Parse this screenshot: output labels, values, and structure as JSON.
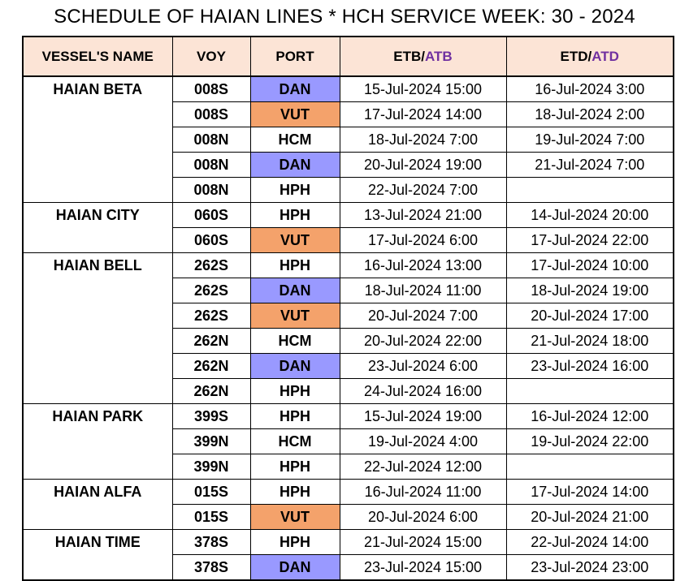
{
  "title": "SCHEDULE OF HAIAN LINES * HCH SERVICE WEEK: 30 - 2024",
  "colors": {
    "header_bg": "#fce4d6",
    "dan": "#9999ff",
    "vut": "#f4a26b",
    "accent_text": "#7030a0"
  },
  "columns": {
    "vessel": "VESSEL'S NAME",
    "voy": "VOY",
    "port": "PORT",
    "etb": "ETB/",
    "atb": "ATB",
    "etd": "ETD/",
    "atd": "ATD"
  },
  "rows": [
    {
      "vessel": "HAIAN BETA",
      "voy": "008S",
      "port": "DAN",
      "etb": "15-Jul-2024 15:00",
      "etd": "16-Jul-2024 3:00"
    },
    {
      "vessel": "",
      "voy": "008S",
      "port": "VUT",
      "etb": "17-Jul-2024 14:00",
      "etd": "18-Jul-2024 2:00"
    },
    {
      "vessel": "",
      "voy": "008N",
      "port": "HCM",
      "etb": "18-Jul-2024 7:00",
      "etd": "19-Jul-2024 7:00"
    },
    {
      "vessel": "",
      "voy": "008N",
      "port": "DAN",
      "etb": "20-Jul-2024 19:00",
      "etd": "21-Jul-2024 7:00"
    },
    {
      "vessel": "",
      "voy": "008N",
      "port": "HPH",
      "etb": "22-Jul-2024 7:00",
      "etd": ""
    },
    {
      "vessel": "HAIAN CITY",
      "voy": "060S",
      "port": "HPH",
      "etb": "13-Jul-2024 21:00",
      "etd": "14-Jul-2024 20:00"
    },
    {
      "vessel": "",
      "voy": "060S",
      "port": "VUT",
      "etb": "17-Jul-2024 6:00",
      "etd": "17-Jul-2024 22:00"
    },
    {
      "vessel": "HAIAN BELL",
      "voy": "262S",
      "port": "HPH",
      "etb": "16-Jul-2024 13:00",
      "etd": "17-Jul-2024 10:00"
    },
    {
      "vessel": "",
      "voy": "262S",
      "port": "DAN",
      "etb": "18-Jul-2024 11:00",
      "etd": "18-Jul-2024 19:00"
    },
    {
      "vessel": "",
      "voy": "262S",
      "port": "VUT",
      "etb": "20-Jul-2024 7:00",
      "etd": "20-Jul-2024 17:00"
    },
    {
      "vessel": "",
      "voy": "262N",
      "port": "HCM",
      "etb": "20-Jul-2024 22:00",
      "etd": "21-Jul-2024 18:00"
    },
    {
      "vessel": "",
      "voy": "262N",
      "port": "DAN",
      "etb": "23-Jul-2024 6:00",
      "etd": "23-Jul-2024 16:00"
    },
    {
      "vessel": "",
      "voy": "262N",
      "port": "HPH",
      "etb": "24-Jul-2024 16:00",
      "etd": ""
    },
    {
      "vessel": "HAIAN PARK",
      "voy": "399S",
      "port": "HPH",
      "etb": "15-Jul-2024 19:00",
      "etd": "16-Jul-2024 12:00"
    },
    {
      "vessel": "",
      "voy": "399N",
      "port": "HCM",
      "etb": "19-Jul-2024 4:00",
      "etd": "19-Jul-2024 22:00"
    },
    {
      "vessel": "",
      "voy": "399N",
      "port": "HPH",
      "etb": "22-Jul-2024 12:00",
      "etd": ""
    },
    {
      "vessel": "HAIAN ALFA",
      "voy": "015S",
      "port": "HPH",
      "etb": "16-Jul-2024 11:00",
      "etd": "17-Jul-2024 14:00"
    },
    {
      "vessel": "",
      "voy": "015S",
      "port": "VUT",
      "etb": "20-Jul-2024 6:00",
      "etd": "20-Jul-2024 21:00"
    },
    {
      "vessel": "HAIAN TIME",
      "voy": "378S",
      "port": "HPH",
      "etb": "21-Jul-2024 15:00",
      "etd": "22-Jul-2024 14:00"
    },
    {
      "vessel": "",
      "voy": "378S",
      "port": "DAN",
      "etb": "23-Jul-2024 15:00",
      "etd": "23-Jul-2024 23:00"
    }
  ]
}
